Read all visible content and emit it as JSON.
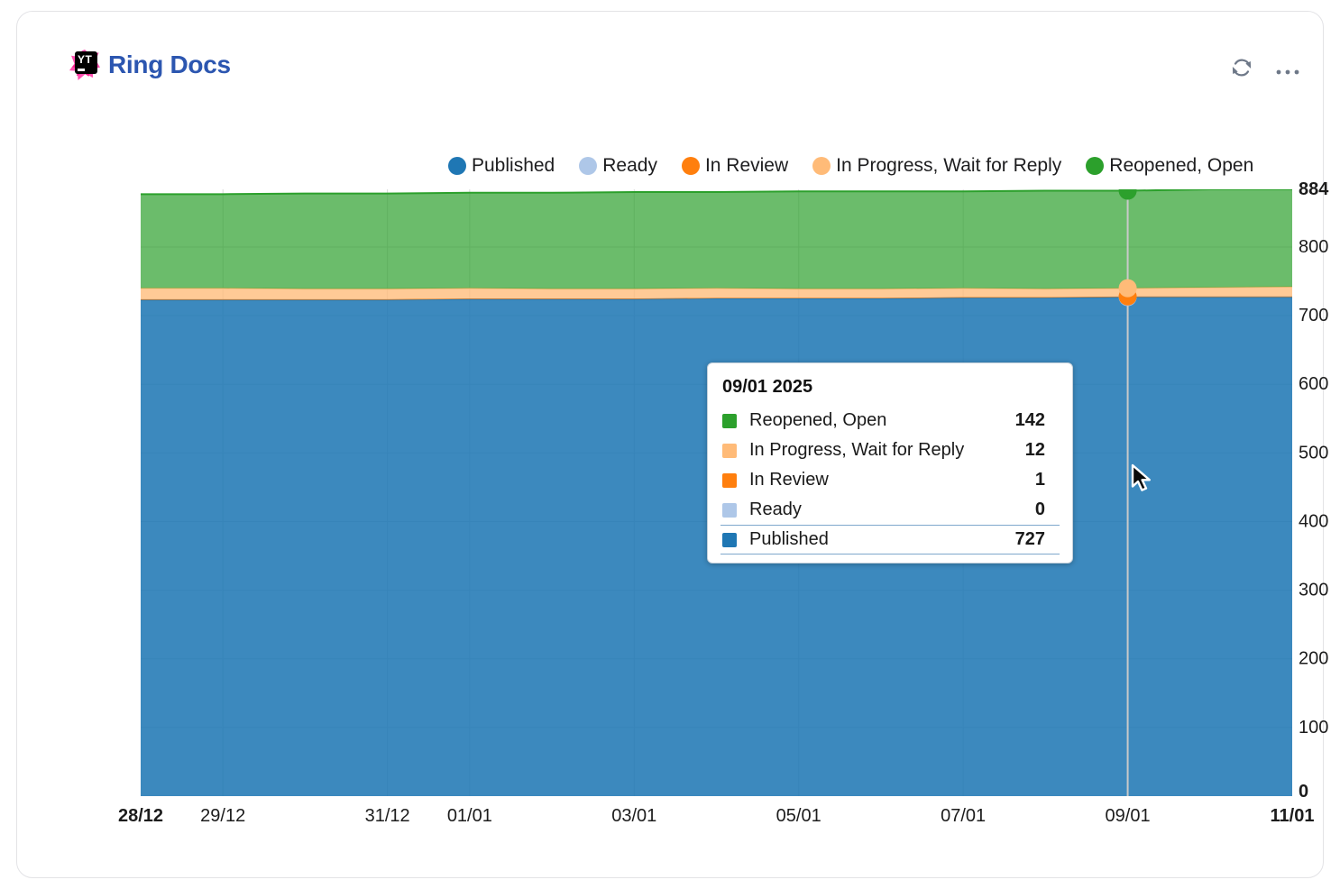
{
  "header": {
    "title": "Ring Docs",
    "logo_text": "YT",
    "logo_icon": "youtrack-logo"
  },
  "toolbar": {
    "icons": [
      "refresh-icon",
      "more-options-icon"
    ]
  },
  "colors": {
    "title": "#2c56b0",
    "text": "#1c1c1c",
    "grid": "#d9d9d9",
    "hover_line": "#c9c9c9",
    "icon_gray": "#6e7888"
  },
  "legend": [
    {
      "label": "Published",
      "color": "#1f77b4"
    },
    {
      "label": "Ready",
      "color": "#aec7e8"
    },
    {
      "label": "In Review",
      "color": "#ff7f0e"
    },
    {
      "label": "In Progress, Wait for Reply",
      "color": "#ffbb78"
    },
    {
      "label": "Reopened, Open",
      "color": "#2ca02c"
    }
  ],
  "chart_data": {
    "type": "area",
    "stacked": true,
    "grid": true,
    "legend_position": "top",
    "x": [
      "28/12",
      "29/12",
      "30/12",
      "31/12",
      "01/01",
      "02/01",
      "03/01",
      "04/01",
      "05/01",
      "06/01",
      "07/01",
      "08/01",
      "09/01",
      "10/01",
      "11/01"
    ],
    "x_tick_labels": [
      "28/12",
      "29/12",
      "31/12",
      "01/01",
      "03/01",
      "05/01",
      "07/01",
      "09/01",
      "11/01"
    ],
    "x_tick_indices": [
      0,
      1,
      3,
      4,
      6,
      8,
      10,
      12,
      14
    ],
    "y_ticks": [
      0,
      100,
      200,
      300,
      400,
      500,
      600,
      700,
      800,
      884
    ],
    "ylim": [
      0,
      884
    ],
    "series": [
      {
        "name": "Published",
        "color": "#1f77b4",
        "fill": "rgba(31,119,180,0.87)",
        "values": [
          723,
          723,
          723,
          723,
          724,
          724,
          724,
          725,
          725,
          725,
          726,
          726,
          727,
          727,
          727
        ]
      },
      {
        "name": "Ready",
        "color": "#aec7e8",
        "fill": "rgba(174,199,232,0.8)",
        "values": [
          0,
          0,
          0,
          0,
          0,
          0,
          0,
          0,
          0,
          0,
          0,
          0,
          0,
          0,
          0
        ]
      },
      {
        "name": "In Review",
        "color": "#ff7f0e",
        "fill": "rgba(255,127,14,0.9)",
        "values": [
          1,
          1,
          1,
          1,
          1,
          1,
          1,
          1,
          1,
          1,
          1,
          1,
          1,
          1,
          1
        ]
      },
      {
        "name": "In Progress, Wait for Reply",
        "color": "#ffbb78",
        "fill": "rgba(255,187,120,0.78)",
        "values": [
          16,
          16,
          15,
          15,
          15,
          14,
          14,
          14,
          13,
          13,
          13,
          12,
          12,
          13,
          14
        ]
      },
      {
        "name": "Reopened, Open",
        "color": "#2ca02c",
        "fill": "rgba(44,160,44,0.7)",
        "values": [
          137,
          137,
          139,
          139,
          139,
          140,
          141,
          140,
          142,
          142,
          141,
          143,
          142,
          143,
          142
        ]
      }
    ],
    "hover_index": 12
  },
  "tooltip": {
    "title": "09/01 2025",
    "rows": [
      {
        "label": "Reopened, Open",
        "value": "142",
        "color": "#2ca02c"
      },
      {
        "label": "In Progress, Wait for Reply",
        "value": "12",
        "color": "#ffbb78"
      },
      {
        "label": "In Review",
        "value": "1",
        "color": "#ff7f0e"
      },
      {
        "label": "Ready",
        "value": "0",
        "color": "#aec7e8"
      },
      {
        "label": "Published",
        "value": "727",
        "color": "#1f77b4"
      }
    ]
  }
}
